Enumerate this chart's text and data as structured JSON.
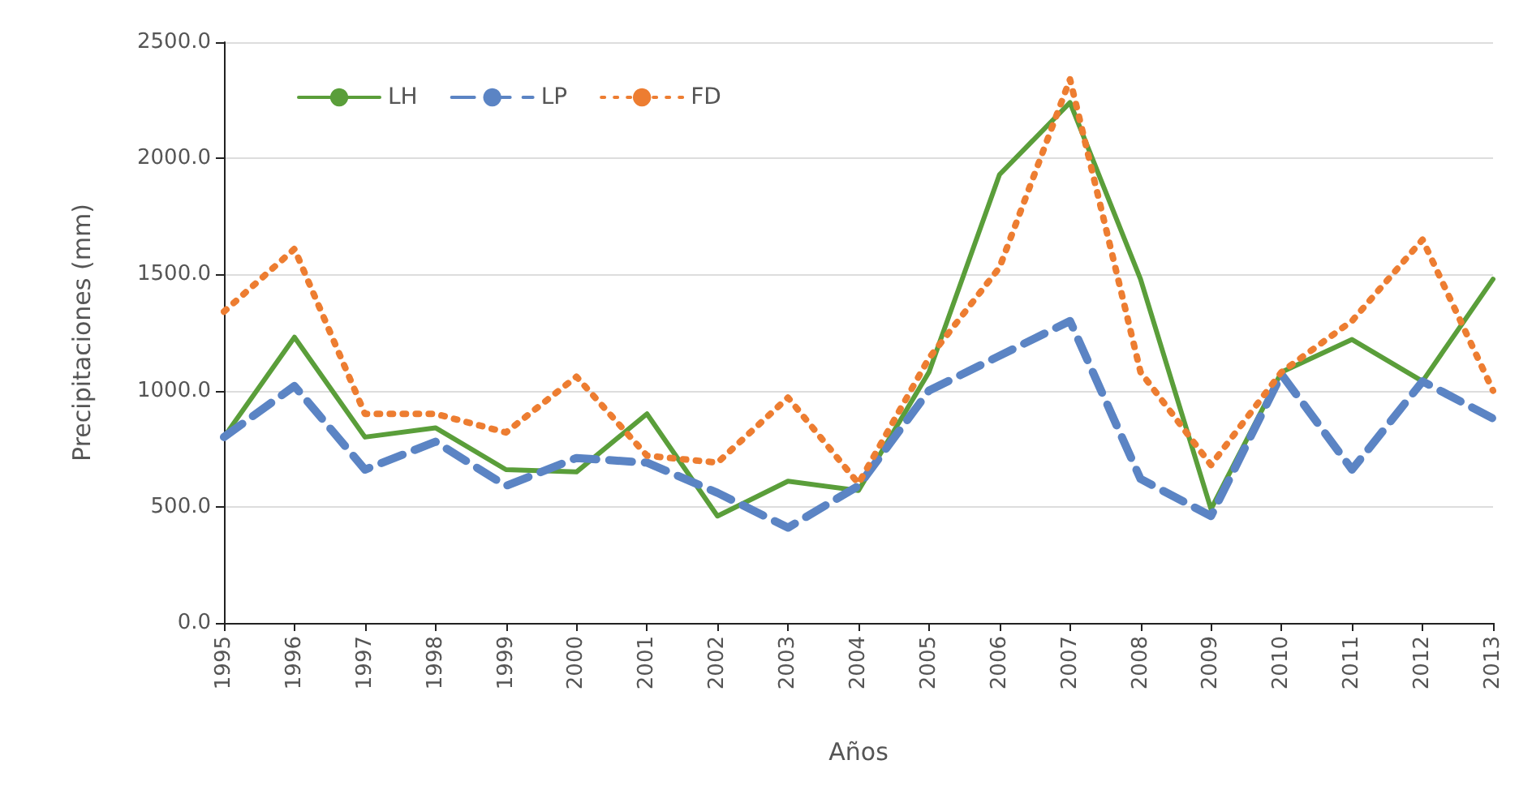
{
  "chart_data": {
    "type": "line",
    "xlabel": "Años",
    "ylabel": "Precipitaciones (mm)",
    "categories": [
      "1995",
      "1996",
      "1997",
      "1998",
      "1999",
      "2000",
      "2001",
      "2002",
      "2003",
      "2004",
      "2005",
      "2006",
      "2007",
      "2008",
      "2009",
      "2010",
      "2011",
      "2012",
      "2013"
    ],
    "series": [
      {
        "name": "LH",
        "color": "#5a9e3a",
        "line_style": "solid",
        "values": [
          800,
          1230,
          800,
          840,
          660,
          650,
          900,
          460,
          610,
          570,
          1080,
          1930,
          2240,
          1480,
          490,
          1080,
          1220,
          1040,
          1480
        ]
      },
      {
        "name": "LP",
        "color": "#5b84c4",
        "line_style": "dashed",
        "values": [
          800,
          1020,
          660,
          780,
          590,
          710,
          690,
          560,
          410,
          590,
          1000,
          1150,
          1300,
          620,
          460,
          1070,
          660,
          1040,
          880
        ]
      },
      {
        "name": "FD",
        "color": "#ed7d31",
        "line_style": "dotted",
        "values": [
          1340,
          1610,
          900,
          900,
          820,
          1060,
          720,
          690,
          970,
          600,
          1140,
          1530,
          2340,
          1080,
          680,
          1080,
          1300,
          1650,
          1000
        ]
      }
    ],
    "ylim": [
      0,
      2500
    ],
    "yticks": [
      {
        "value": 0,
        "label": "0.0"
      },
      {
        "value": 500,
        "label": "500.0"
      },
      {
        "value": 1000,
        "label": "1000.0"
      },
      {
        "value": 1500,
        "label": "1500.0"
      },
      {
        "value": 2000,
        "label": "2000.0"
      },
      {
        "value": 2500,
        "label": "2500.0"
      }
    ],
    "grid": "y",
    "legend": "top left",
    "marker": "none"
  }
}
